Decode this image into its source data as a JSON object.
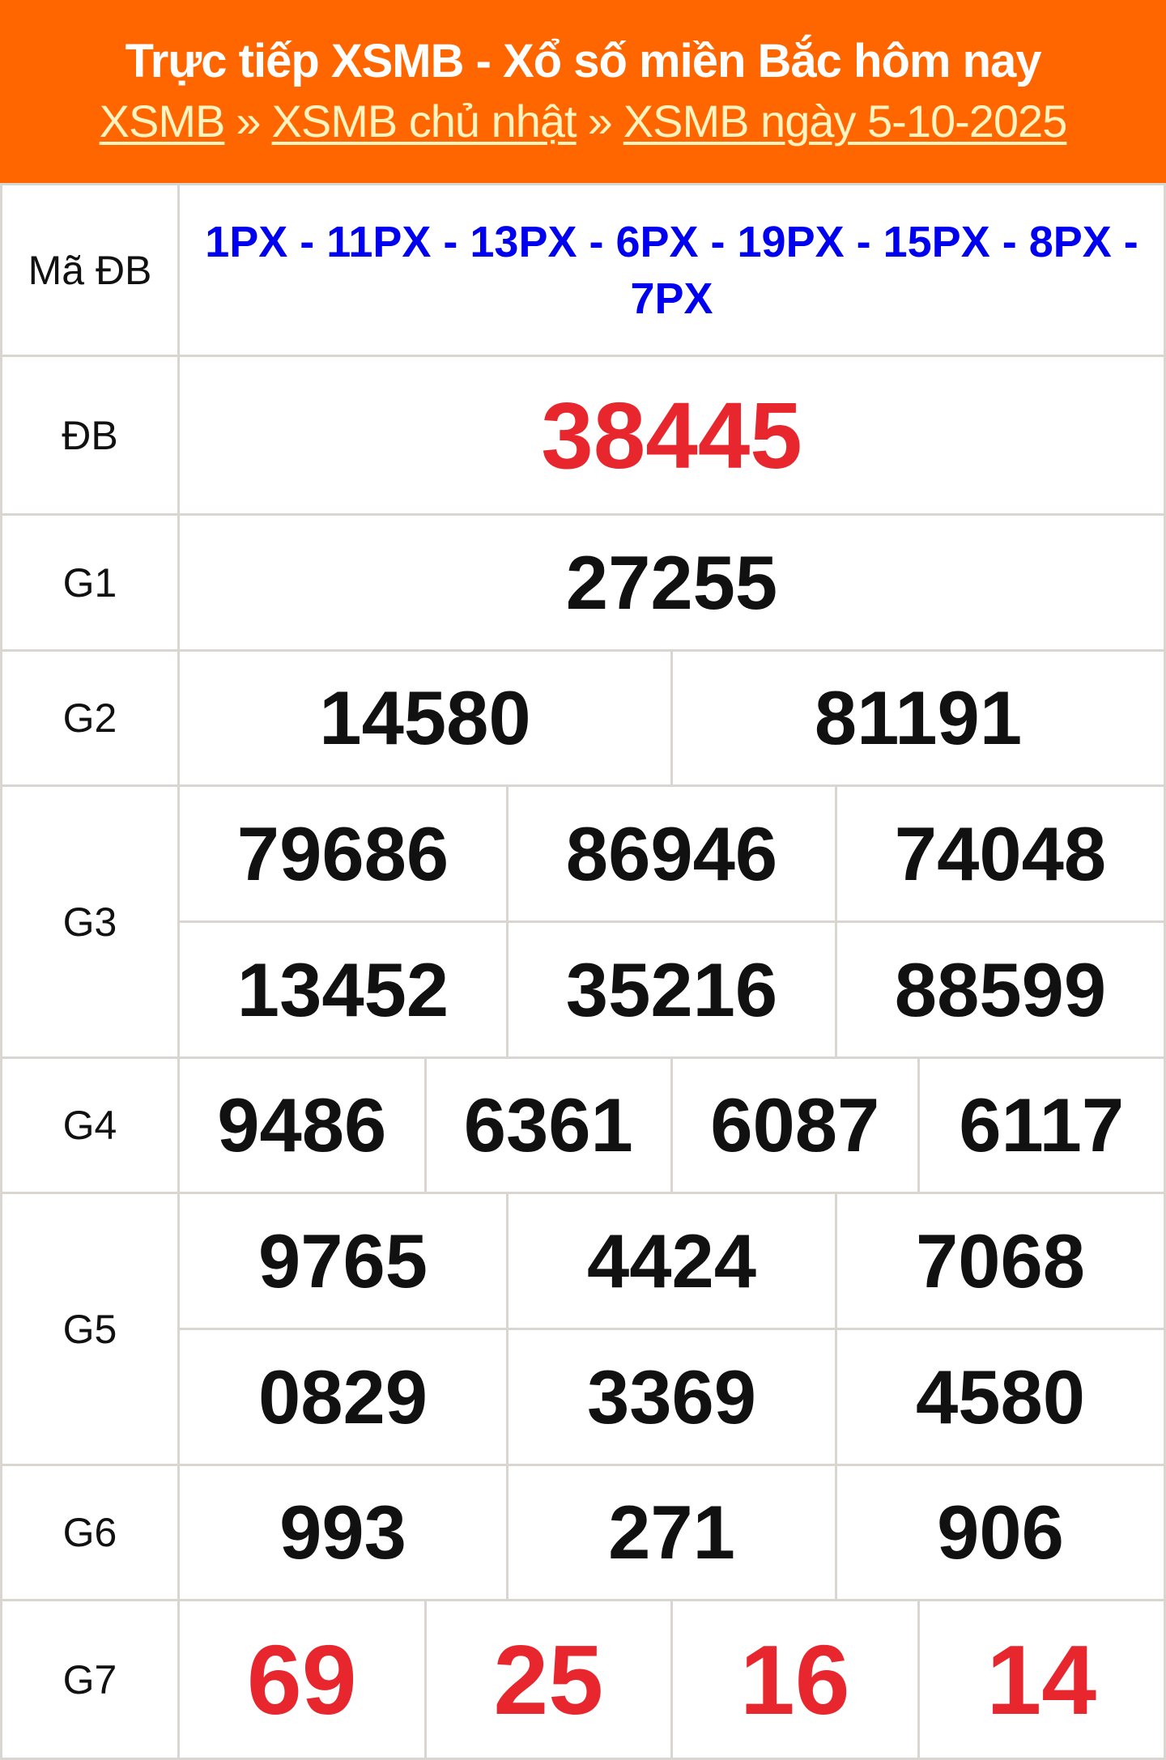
{
  "header": {
    "title": "Trực tiếp XSMB - Xổ số miền Bắc hôm nay",
    "breadcrumbs": [
      "XSMB",
      "XSMB chủ nhật",
      "XSMB ngày 5-10-2025"
    ],
    "separator": "»"
  },
  "colors": {
    "header_bg": "#ff6600",
    "special": "#e8262d",
    "code": "#0000ee"
  },
  "results": {
    "ma_db": {
      "label": "Mã ĐB",
      "value": "1PX - 11PX - 13PX - 6PX - 19PX - 15PX - 8PX - 7PX"
    },
    "db": {
      "label": "ĐB",
      "values": [
        "38445"
      ]
    },
    "g1": {
      "label": "G1",
      "values": [
        "27255"
      ]
    },
    "g2": {
      "label": "G2",
      "values": [
        "14580",
        "81191"
      ]
    },
    "g3": {
      "label": "G3",
      "values": [
        "79686",
        "86946",
        "74048",
        "13452",
        "35216",
        "88599"
      ]
    },
    "g4": {
      "label": "G4",
      "values": [
        "9486",
        "6361",
        "6087",
        "6117"
      ]
    },
    "g5": {
      "label": "G5",
      "values": [
        "9765",
        "4424",
        "7068",
        "0829",
        "3369",
        "4580"
      ]
    },
    "g6": {
      "label": "G6",
      "values": [
        "993",
        "271",
        "906"
      ]
    },
    "g7": {
      "label": "G7",
      "values": [
        "69",
        "25",
        "16",
        "14"
      ]
    }
  }
}
